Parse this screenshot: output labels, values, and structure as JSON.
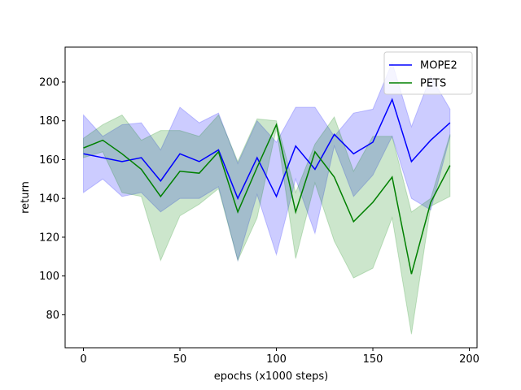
{
  "chart_data": {
    "type": "line",
    "xlabel": "epochs (x1000 steps)",
    "ylabel": "return",
    "x": [
      0,
      10,
      20,
      30,
      40,
      50,
      60,
      70,
      80,
      90,
      100,
      110,
      120,
      130,
      140,
      150,
      160,
      170,
      180,
      190
    ],
    "series": [
      {
        "name": "MOPE2",
        "color": "#0000ff",
        "values": [
          163,
          161,
          159,
          161,
          149,
          163,
          159,
          165,
          140,
          161,
          141,
          167,
          155,
          173,
          163,
          169,
          191,
          159,
          170,
          179
        ],
        "upper": [
          183,
          172,
          178,
          179,
          165,
          187,
          179,
          184,
          158,
          180,
          169,
          187,
          187,
          172,
          184,
          186,
          210,
          177,
          203,
          186
        ],
        "lower": [
          143,
          150,
          141,
          143,
          133,
          140,
          140,
          146,
          108,
          142,
          111,
          150,
          122,
          167,
          141,
          152,
          172,
          140,
          134,
          172
        ]
      },
      {
        "name": "PETS",
        "color": "#008000",
        "values": [
          166,
          170,
          163,
          155,
          141,
          154,
          153,
          164,
          133,
          156,
          178,
          133,
          164,
          151,
          128,
          138,
          151,
          101,
          138,
          157
        ],
        "upper": [
          171,
          178,
          183,
          170,
          175,
          175,
          172,
          183,
          159,
          181,
          180,
          143,
          168,
          182,
          154,
          172,
          172,
          133,
          140,
          173
        ],
        "lower": [
          161,
          164,
          143,
          141,
          108,
          131,
          137,
          145,
          108,
          130,
          176,
          109,
          148,
          118,
          99,
          104,
          130,
          70,
          136,
          141
        ]
      }
    ],
    "xlim": [
      -9.5,
      204
    ],
    "ylim": [
      63,
      218
    ],
    "xticks": [
      0,
      50,
      100,
      150,
      200
    ],
    "yticks": [
      80,
      100,
      120,
      140,
      160,
      180,
      200
    ],
    "legend": "upper right",
    "band_alpha": 0.2
  }
}
